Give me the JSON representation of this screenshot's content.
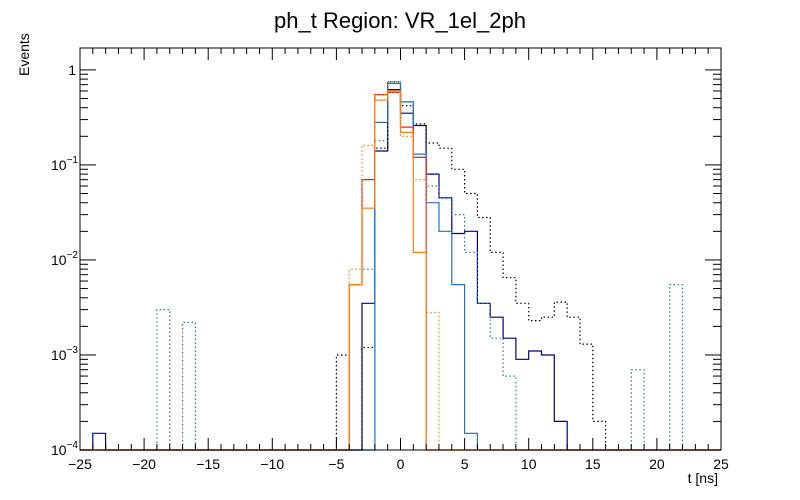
{
  "chart_data": {
    "type": "line",
    "title": "ph_t Region: VR_1el_2ph",
    "xlabel": "t [ns]",
    "ylabel": "Events",
    "xlim": [
      -25,
      25
    ],
    "ylim": [
      0.0001,
      1.7
    ],
    "yscale": "log",
    "grid": false,
    "x_ticks": [
      -25,
      -20,
      -15,
      -10,
      -5,
      0,
      5,
      10,
      15,
      20,
      25
    ],
    "y_ticks": [
      {
        "value": 0.0001,
        "base": "10",
        "exp": "−4"
      },
      {
        "value": 0.001,
        "base": "10",
        "exp": "−3"
      },
      {
        "value": 0.01,
        "base": "10",
        "exp": "−2"
      },
      {
        "value": 0.1,
        "base": "10",
        "exp": "−1"
      },
      {
        "value": 1,
        "base": "1",
        "exp": ""
      }
    ],
    "bin_edges_start": -25,
    "bin_width": 1,
    "series": [
      {
        "color": "#000080",
        "style": "solid",
        "values": [
          0,
          0.00015,
          0,
          0,
          0,
          0,
          0,
          0,
          0,
          0,
          0,
          0,
          0,
          0,
          0,
          0,
          0,
          0,
          0,
          0,
          0,
          0,
          0.0035,
          0.14,
          0.62,
          0.35,
          0.26,
          0.08,
          0.045,
          0.019,
          0.02,
          0.0035,
          0.0025,
          0.0015,
          0.0009,
          0.0011,
          0.001,
          0.0002,
          0,
          0,
          0,
          0,
          0,
          0,
          0,
          0,
          0,
          0,
          0,
          0
        ]
      },
      {
        "color": "#000000",
        "style": "dotted",
        "values": [
          0,
          0,
          0,
          0,
          0,
          0,
          0,
          0,
          0,
          0,
          0,
          0,
          0,
          0,
          0,
          0,
          0,
          0,
          0,
          0,
          0.001,
          0,
          0.0012,
          0.15,
          0.75,
          0.42,
          0.27,
          0.17,
          0.15,
          0.09,
          0.05,
          0.028,
          0.012,
          0.0065,
          0.0035,
          0.0023,
          0.0025,
          0.0036,
          0.0025,
          0.0013,
          0.0002,
          0,
          0,
          0,
          0,
          0,
          0,
          0,
          0,
          0
        ]
      },
      {
        "color": "#1f77b4",
        "style": "solid",
        "values": [
          0,
          0,
          0,
          0,
          0,
          0,
          0,
          0,
          0,
          0,
          0,
          0,
          0,
          0,
          0,
          0,
          0,
          0,
          0,
          0,
          0,
          0,
          0,
          0.28,
          0.72,
          0.46,
          0.13,
          0.04,
          0.02,
          0.0055,
          0.00015,
          0,
          0,
          0,
          0,
          0,
          0,
          0,
          0,
          0,
          0,
          0,
          0,
          0,
          0,
          0,
          0,
          0,
          0,
          0
        ]
      },
      {
        "color": "#1f77b4",
        "style": "dotted",
        "values": [
          0,
          0,
          0,
          0,
          0,
          0,
          0.003,
          0,
          0.0022,
          0,
          0,
          0,
          0,
          0,
          0,
          0,
          0,
          0,
          0,
          0,
          0,
          0.0055,
          0.008,
          0.18,
          0.75,
          0.46,
          0.12,
          0.06,
          0.045,
          0.03,
          0.012,
          0.0035,
          0.0015,
          0.0006,
          0,
          0,
          0,
          0,
          0,
          0,
          0,
          0,
          0,
          0.0007,
          0,
          0,
          0.0055,
          0,
          0,
          0
        ]
      },
      {
        "color": "#e8201a",
        "style": "solid",
        "values": [
          0,
          0,
          0,
          0,
          0,
          0,
          0,
          0,
          0,
          0,
          0,
          0,
          0,
          0,
          0,
          0,
          0,
          0,
          0,
          0,
          0,
          0.0055,
          0.07,
          0.55,
          0.58,
          0.25,
          0.12,
          0,
          0,
          0,
          0,
          0,
          0,
          0,
          0,
          0,
          0,
          0,
          0,
          0,
          0,
          0,
          0,
          0,
          0,
          0,
          0,
          0,
          0,
          0
        ]
      },
      {
        "color": "#ff7f0e",
        "style": "solid",
        "values": [
          0,
          0,
          0,
          0,
          0,
          0,
          0,
          0,
          0,
          0,
          0,
          0,
          0,
          0,
          0,
          0,
          0,
          0,
          0,
          0,
          0,
          0.0055,
          0.035,
          0.48,
          0.6,
          0.22,
          0.012,
          0,
          0,
          0,
          0,
          0,
          0,
          0,
          0,
          0,
          0,
          0,
          0,
          0,
          0,
          0,
          0,
          0,
          0,
          0,
          0,
          0,
          0,
          0
        ]
      },
      {
        "color": "#ff7f0e",
        "style": "dotted",
        "values": [
          0,
          0,
          0,
          0,
          0,
          0,
          0,
          0,
          0,
          0,
          0,
          0,
          0,
          0,
          0,
          0,
          0,
          0,
          0,
          0,
          0,
          0.008,
          0.16,
          0.55,
          0.58,
          0.2,
          0.07,
          0.0028,
          0,
          0,
          0,
          0,
          0,
          0,
          0,
          0,
          0,
          0,
          0,
          0,
          0,
          0,
          0,
          0,
          0,
          0,
          0,
          0,
          0,
          0
        ]
      }
    ]
  }
}
